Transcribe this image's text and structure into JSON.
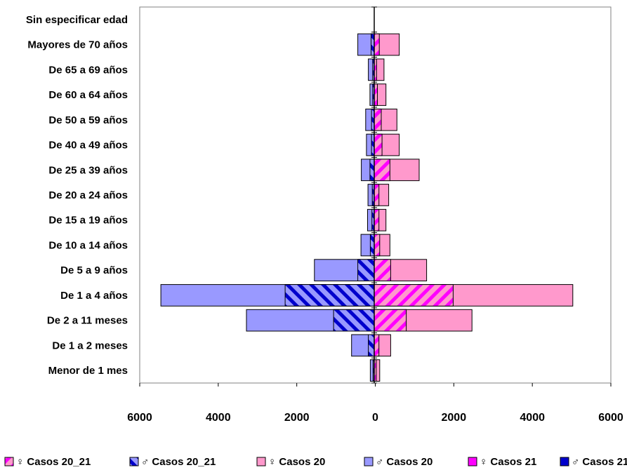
{
  "chart_data": {
    "type": "bar",
    "orientation": "horizontal-population-pyramid",
    "categories": [
      "Sin especificar  edad",
      "Mayores de 70 años",
      "De 65 a 69 años",
      "De 60 a 64 años",
      "De 50 a 59 años",
      "De 40 a 49 años",
      "De 25 a 39 años",
      "De 20 a 24 años",
      "De 15 a 19 años",
      "De 10 a 14 años",
      "De 5 a 9 años",
      "De 1 a 4 años",
      "De 2 a 11 meses",
      "De 1 a 2 meses",
      "Menor de 1 mes"
    ],
    "x_ticks": [
      "6000",
      "4000",
      "2000",
      "0",
      "2000",
      "4000",
      "6000"
    ],
    "xlim": [
      -6000,
      6000
    ],
    "series": [
      {
        "name": "♀ Casos 20_21",
        "side": "right",
        "color": "#ff99cc",
        "values": [
          0,
          640,
          250,
          300,
          580,
          640,
          1150,
          370,
          300,
          400,
          1340,
          5080,
          2500,
          420,
          140
        ]
      },
      {
        "name": "♂ Casos 20_21",
        "side": "left",
        "color": "#9999ff",
        "values": [
          0,
          420,
          150,
          110,
          220,
          200,
          330,
          160,
          170,
          340,
          1530,
          5460,
          3270,
          580,
          100
        ]
      },
      {
        "name": "♀ Casos 20",
        "side": "right",
        "color": "#ff99cc",
        "values": [
          0,
          130,
          60,
          80,
          180,
          200,
          400,
          120,
          120,
          140,
          420,
          2020,
          820,
          120,
          50
        ]
      },
      {
        "name": "♂ Casos 20",
        "side": "left",
        "color": "#9999ff",
        "values": [
          0,
          80,
          40,
          40,
          70,
          70,
          110,
          50,
          60,
          100,
          420,
          2280,
          1040,
          150,
          30
        ]
      },
      {
        "name": "♀ Casos 21",
        "side": "right",
        "color": "#ff00ff",
        "values": [
          0,
          0,
          0,
          0,
          0,
          0,
          0,
          0,
          0,
          0,
          0,
          0,
          0,
          0,
          0
        ]
      },
      {
        "name": "♂ Casos 21",
        "side": "left",
        "color": "#0000cc",
        "values": [
          0,
          0,
          0,
          0,
          0,
          0,
          0,
          0,
          0,
          0,
          0,
          0,
          0,
          0,
          0
        ]
      }
    ],
    "legend_position": "bottom"
  }
}
